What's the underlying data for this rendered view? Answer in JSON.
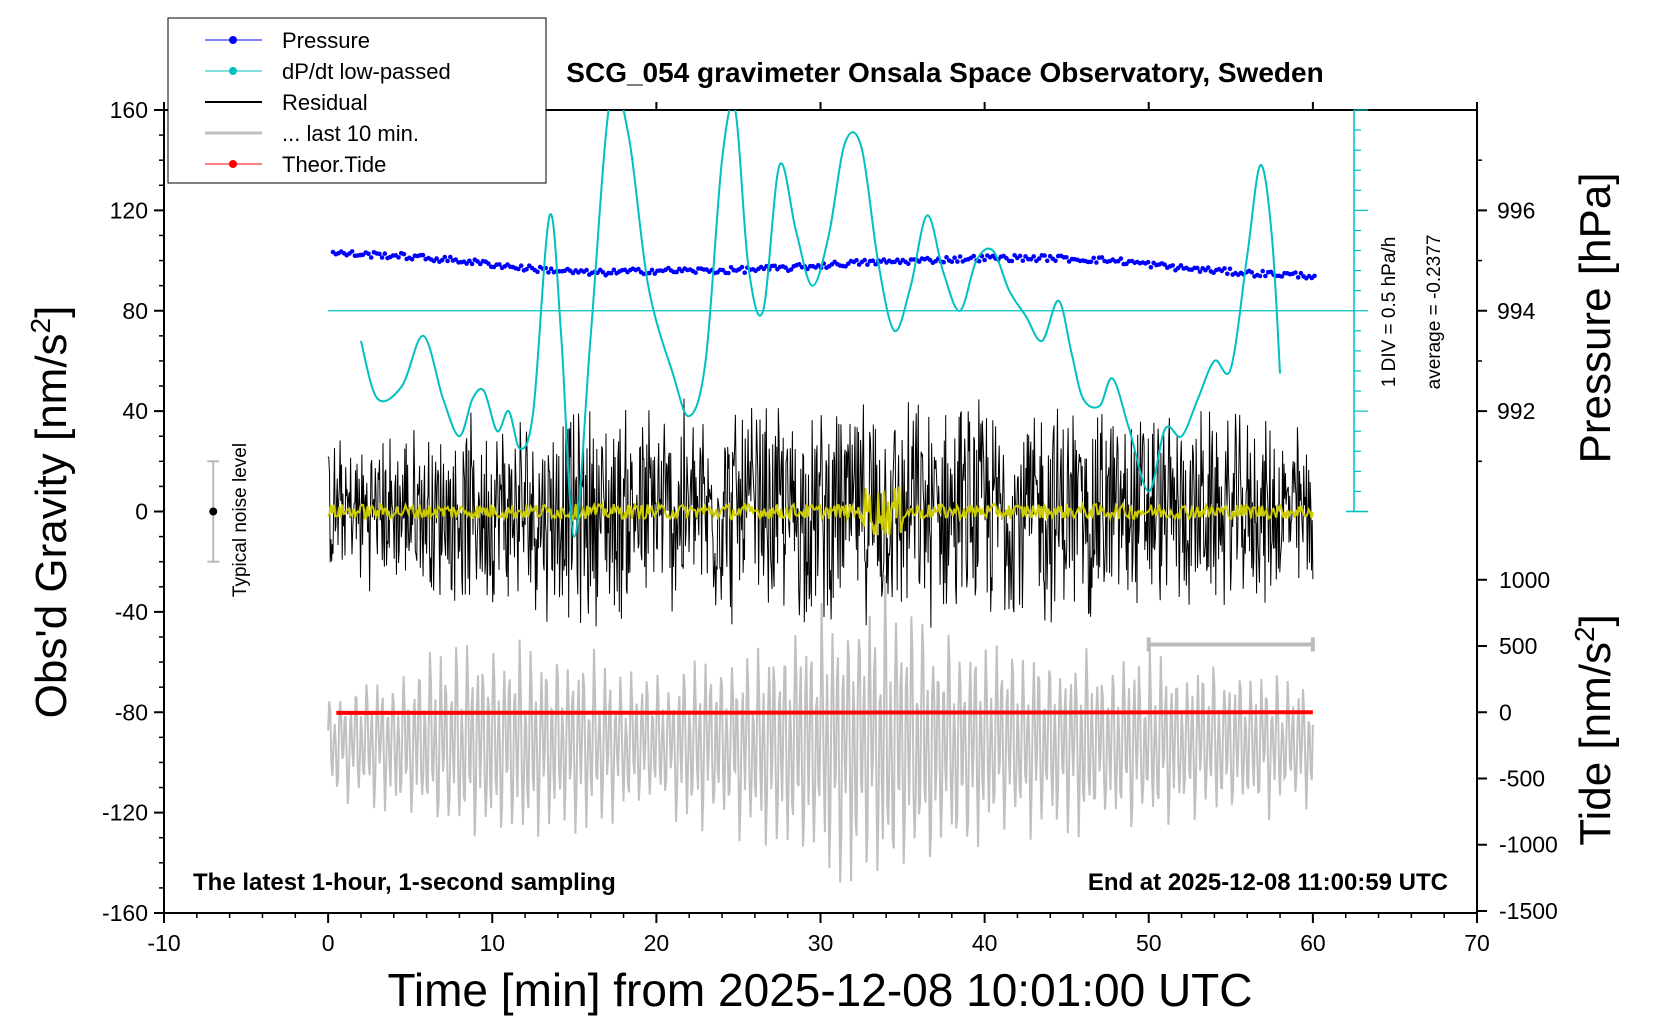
{
  "chart_data": {
    "type": "line",
    "title": "SCG_054 gravimeter Onsala Space Observatory, Sweden",
    "xlabel": "Time [min] from 2025-12-08 10:01:00 UTC",
    "ylabel_main": "Obs'd Gravity [nm/s",
    "ylabel_pressure": "Pressure [hPa]",
    "ylabel_tide": "Tide [nm/s",
    "unit_superscript": "2",
    "xlim": [
      -10,
      70
    ],
    "xticks": [
      "-10",
      "0",
      "10",
      "20",
      "30",
      "40",
      "50",
      "60",
      "70"
    ],
    "ylim": [
      -160,
      160
    ],
    "yticks": [
      "160",
      "120",
      "80",
      "40",
      "0",
      "-40",
      "-80",
      "-120",
      "-160"
    ],
    "pressure_axis": {
      "ticks": [
        "996",
        "994",
        "992"
      ],
      "values": [
        996,
        994,
        992
      ]
    },
    "tide_axis": {
      "ticks": [
        "1000",
        "500",
        "0",
        "-500",
        "-1000",
        "-1500"
      ],
      "values": [
        1000,
        500,
        0,
        -500,
        -1000,
        -1500
      ]
    },
    "legend": [
      {
        "label": "Pressure",
        "color": "#0000ff",
        "style": "line-dot"
      },
      {
        "label": "dP/dt low-passed",
        "color": "#00c0c0",
        "style": "line-dot"
      },
      {
        "label": "Residual",
        "color": "#000000",
        "style": "line"
      },
      {
        "label": "... last 10 min.",
        "color": "#c0c0c0",
        "style": "line-thick"
      },
      {
        "label": "Theor.Tide",
        "color": "#ff0000",
        "style": "line-dot"
      }
    ],
    "annotations": {
      "bottom_left": "The latest 1-hour, 1-second sampling",
      "bottom_right": "End at 2025-12-08 11:00:59 UTC",
      "noise": "Typical noise level",
      "dpdt_scale": "1 DIV = 0.5 hPa/h",
      "dpdt_average": "average = -0.2377"
    },
    "noise_bar": {
      "x": -7,
      "center": 0,
      "half_range": 20
    },
    "last10_bar": {
      "x_start": 50,
      "x_end": 60,
      "y": -53
    },
    "series": [
      {
        "name": "Pressure",
        "color": "#0000ff",
        "units": "hPa",
        "x": [
          0,
          4,
          8,
          12,
          16,
          20,
          24,
          28,
          32,
          36,
          40,
          44,
          48,
          52,
          56,
          60
        ],
        "values": [
          995.15,
          995.1,
          995.0,
          994.85,
          994.75,
          994.8,
          994.8,
          994.85,
          994.95,
          995.0,
          995.05,
          995.05,
          995.0,
          994.85,
          994.75,
          994.7
        ]
      },
      {
        "name": "dP/dt low-passed",
        "color": "#00c0c0",
        "units": "nm/s2 plot scale",
        "x": [
          2,
          3,
          4.5,
          5.8,
          7,
          8,
          8.8,
          9.5,
          10.3,
          11,
          11.7,
          12.5,
          13.5,
          14.2,
          15,
          16,
          17.2,
          18.3,
          19.5,
          21,
          22,
          23,
          24,
          24.8,
          25.6,
          26.5,
          27.5,
          28.5,
          29.5,
          30.5,
          31.5,
          32.5,
          33.5,
          34.5,
          35.5,
          36.5,
          37.5,
          38.5,
          39.5,
          40.5,
          41.5,
          42.5,
          43.5,
          44.5,
          45.3,
          46,
          47,
          47.8,
          48.8,
          50,
          51,
          52,
          53,
          54,
          55,
          56,
          56.8,
          57.5,
          58
        ],
        "values": [
          68,
          45,
          50,
          70,
          45,
          30,
          45,
          48,
          32,
          40,
          25,
          40,
          118,
          70,
          -10,
          70,
          165,
          150,
          90,
          55,
          38,
          60,
          140,
          160,
          98,
          80,
          138,
          112,
          90,
          110,
          147,
          145,
          100,
          72,
          90,
          118,
          95,
          80,
          100,
          104,
          88,
          78,
          68,
          84,
          63,
          45,
          42,
          53,
          33,
          8,
          33,
          30,
          45,
          60,
          57,
          102,
          138,
          110,
          55
        ]
      },
      {
        "name": "Residual",
        "color": "#000000",
        "units": "nm/s2",
        "x": [
          0,
          15,
          30,
          45,
          60
        ],
        "envelope": [
          30,
          48,
          48,
          50,
          38
        ]
      },
      {
        "name": "... last 10 min.",
        "color": "#c0c0c0",
        "units": "nm/s2 (displayed around -80)",
        "x": [
          0,
          10,
          20,
          30,
          34,
          40,
          50,
          60
        ],
        "envelope": [
          22,
          48,
          30,
          58,
          70,
          42,
          40,
          28
        ]
      },
      {
        "name": "Theor.Tide",
        "color": "#ff0000",
        "units": "nm/s2",
        "x": [
          0.5,
          60
        ],
        "values": [
          -5,
          0
        ]
      }
    ]
  }
}
